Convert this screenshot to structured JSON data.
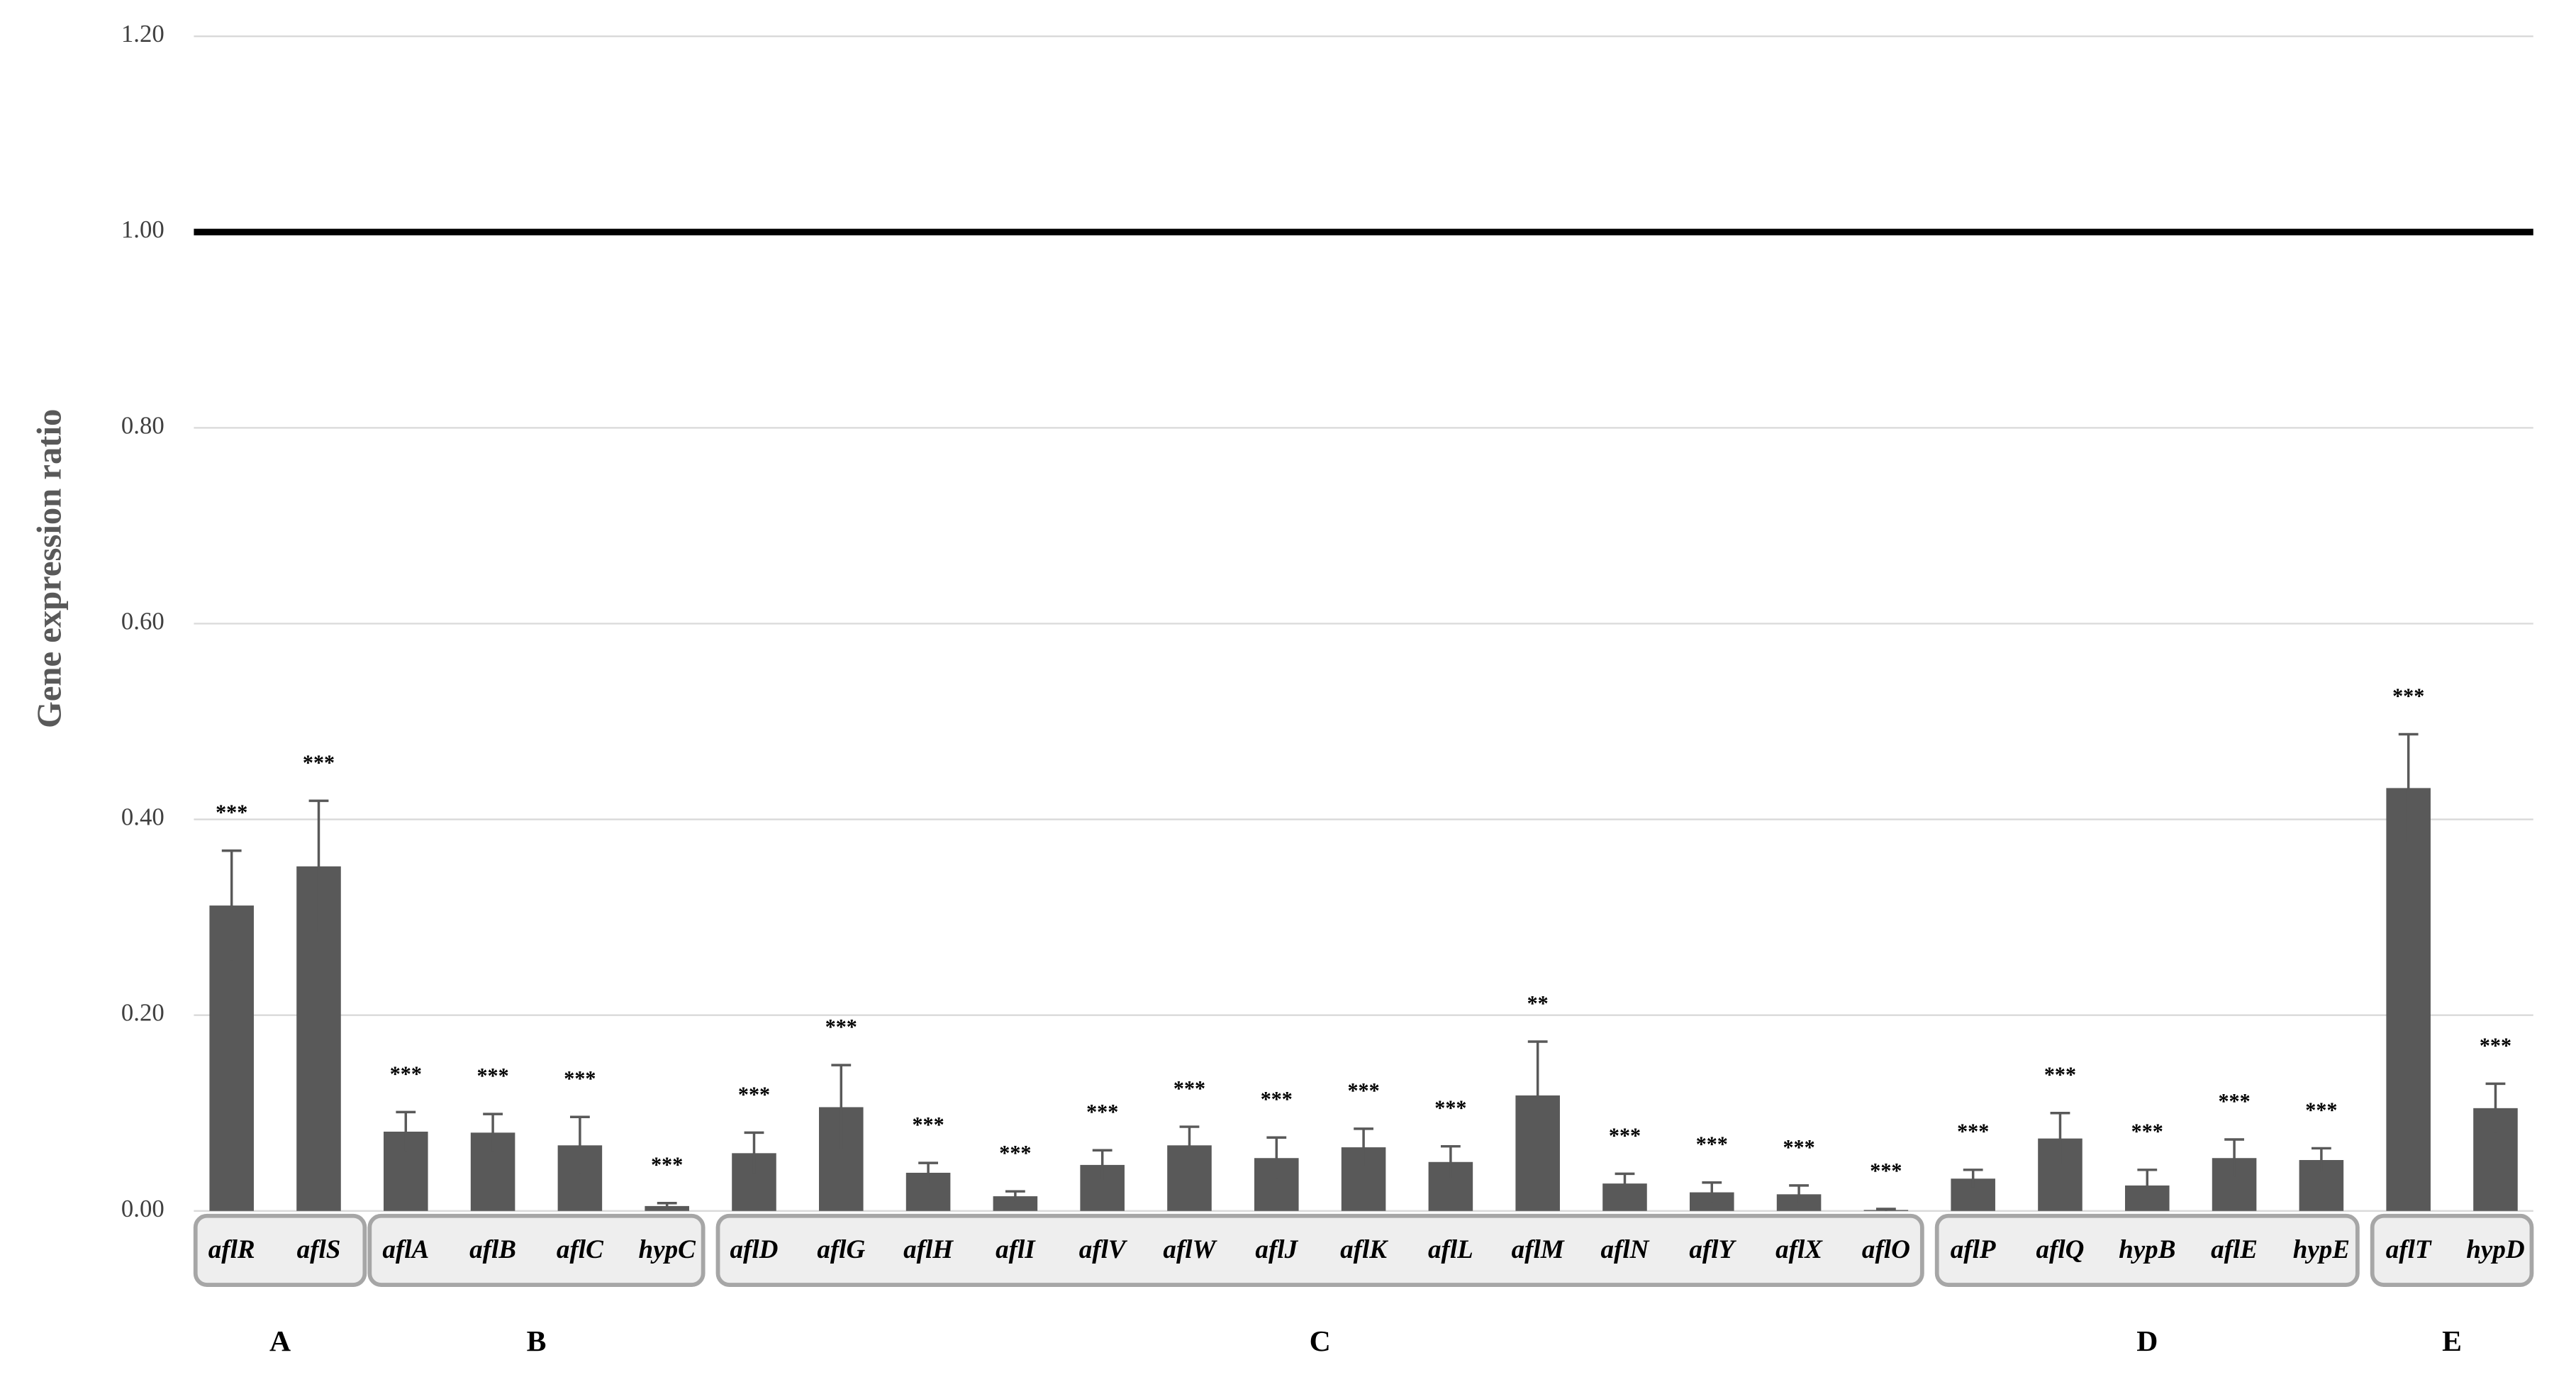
{
  "chart_data": {
    "type": "bar",
    "y_label": "Gene expression ratio",
    "categories": [
      "aflR",
      "aflS",
      "aflA",
      "aflB",
      "aflC",
      "hypC",
      "aflD",
      "aflG",
      "aflH",
      "aflI",
      "aflV",
      "aflW",
      "aflJ",
      "aflK",
      "aflL",
      "aflM",
      "aflN",
      "aflY",
      "aflX",
      "aflO",
      "aflP",
      "aflQ",
      "hypB",
      "aflE",
      "hypE",
      "aflT",
      "hypD"
    ],
    "values": [
      0.312,
      0.352,
      0.081,
      0.08,
      0.067,
      0.005,
      0.059,
      0.106,
      0.039,
      0.015,
      0.047,
      0.067,
      0.054,
      0.065,
      0.05,
      0.118,
      0.028,
      0.019,
      0.017,
      0.001,
      0.033,
      0.074,
      0.026,
      0.054,
      0.052,
      0.432,
      0.105
    ],
    "errors": [
      0.056,
      0.067,
      0.02,
      0.019,
      0.029,
      0.003,
      0.021,
      0.043,
      0.01,
      0.005,
      0.015,
      0.019,
      0.021,
      0.019,
      0.016,
      0.055,
      0.01,
      0.01,
      0.009,
      0.001,
      0.009,
      0.026,
      0.016,
      0.019,
      0.012,
      0.055,
      0.025
    ],
    "annotations": [
      "***",
      "***",
      "***",
      "***",
      "***",
      "***",
      "***",
      "***",
      "***",
      "***",
      "***",
      "***",
      "***",
      "***",
      "***",
      "**",
      "***",
      "***",
      "***",
      "***",
      "***",
      "***",
      "***",
      "***",
      "***",
      "***",
      "***"
    ],
    "color": "#595959",
    "groups": {
      "labels": [
        "A",
        "B",
        "C",
        "D",
        "E"
      ],
      "sizes": [
        2,
        4,
        14,
        5,
        2
      ]
    },
    "reference_line": 1,
    "ylim": [
      0,
      1.2
    ],
    "yticks": [
      {
        "value": 0,
        "label": "0.00"
      },
      {
        "value": 0.2,
        "label": "0.20"
      },
      {
        "value": 0.4,
        "label": "0.40"
      },
      {
        "value": 0.6,
        "label": "0.60"
      },
      {
        "value": 0.8,
        "label": "0.80"
      },
      {
        "value": 1,
        "label": "1.00"
      },
      {
        "value": 1.2,
        "label": "1.20"
      }
    ],
    "grid": true
  }
}
